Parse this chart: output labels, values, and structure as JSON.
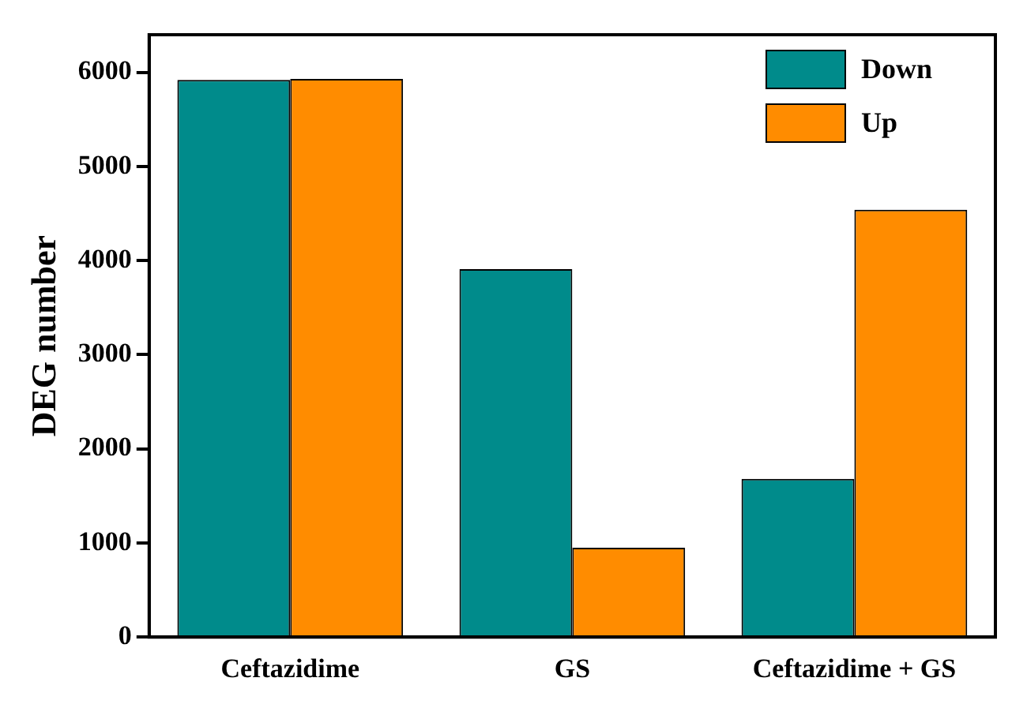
{
  "chart_data": {
    "type": "bar",
    "ylabel": "DEG number",
    "categories": [
      "Ceftazidime",
      "GS",
      "Ceftazidime + GS"
    ],
    "series": [
      {
        "name": "Down",
        "color": "#008b8b",
        "values": [
          5920,
          3910,
          1680
        ]
      },
      {
        "name": "Up",
        "color": "#ff8c00",
        "values": [
          5930,
          950,
          4540
        ]
      }
    ],
    "ylim": [
      0,
      6400
    ],
    "yticks": [
      0,
      1000,
      2000,
      3000,
      4000,
      5000,
      6000
    ],
    "grid": false,
    "legend": "top right"
  }
}
